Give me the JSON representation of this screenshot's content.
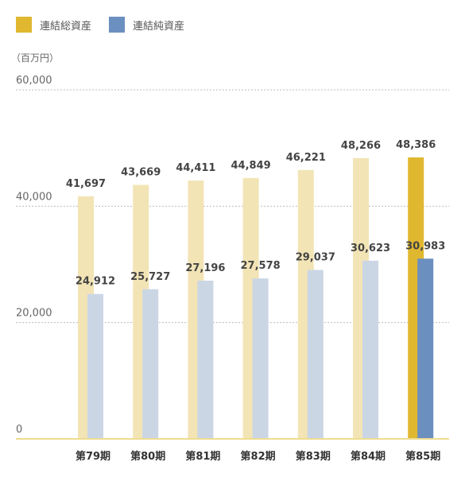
{
  "legend": {
    "items": [
      {
        "label": "連結総資産",
        "color": "#E0B830"
      },
      {
        "label": "連結純資産",
        "color": "#6B8FBF"
      }
    ]
  },
  "chart_data": {
    "type": "bar",
    "unit_label": "（百万円）",
    "categories": [
      "第79期",
      "第80期",
      "第81期",
      "第82期",
      "第83期",
      "第84期",
      "第85期"
    ],
    "series": [
      {
        "name": "連結総資産",
        "values": [
          41697,
          43669,
          44411,
          44849,
          46221,
          48266,
          48386
        ],
        "value_labels": [
          "41,697",
          "43,669",
          "44,411",
          "44,849",
          "46,221",
          "48,266",
          "48,386"
        ],
        "color": "#E0B830",
        "faded_color": "#F2E4B5"
      },
      {
        "name": "連結純資産",
        "values": [
          24912,
          25727,
          27196,
          27578,
          29037,
          30623,
          30983
        ],
        "value_labels": [
          "24,912",
          "25,727",
          "27,196",
          "27,578",
          "29,037",
          "30,623",
          "30,983"
        ],
        "color": "#6B8FBF",
        "faded_color": "#CBD6E5"
      }
    ],
    "ylim": [
      0,
      60000
    ],
    "yticks": [
      0,
      20000,
      40000,
      60000
    ],
    "ytick_labels": [
      "0",
      "20,000",
      "40,000",
      "60,000"
    ],
    "highlight_index": 6,
    "grid": true,
    "baseline_color": "#EEDC90"
  }
}
